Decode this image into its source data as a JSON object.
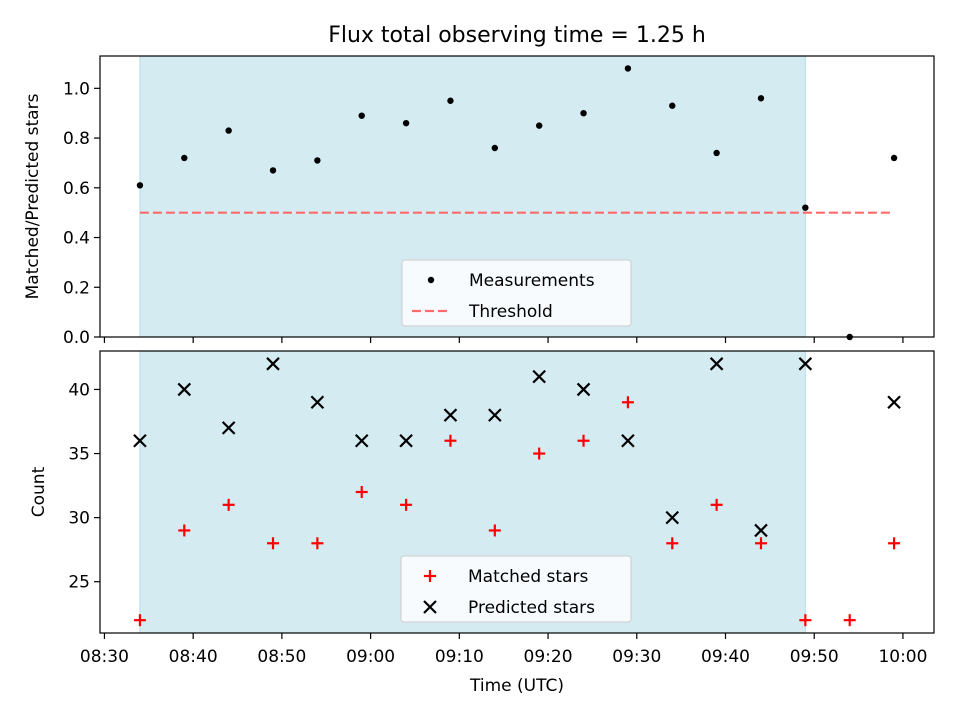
{
  "chart_data": [
    {
      "type": "scatter",
      "title": "Flux total observing time = 1.25 h",
      "xlabel": "",
      "ylabel": "Matched/Predicted stars",
      "ylim": [
        0,
        1.13
      ],
      "yticks": [
        "0.0",
        "0.2",
        "0.4",
        "0.6",
        "0.8",
        "1.0"
      ],
      "x_range_minutes": [
        509.5,
        603.5
      ],
      "shaded_interval": [
        "08:34",
        "09:49"
      ],
      "shade_color": "#add8e6",
      "series": [
        {
          "name": "Measurements",
          "color": "#000000",
          "marker": "dot",
          "x": [
            "08:34",
            "08:39",
            "08:44",
            "08:49",
            "08:54",
            "08:59",
            "09:04",
            "09:09",
            "09:14",
            "09:19",
            "09:24",
            "09:29",
            "09:34",
            "09:39",
            "09:44",
            "09:49",
            "09:54",
            "09:59"
          ],
          "values": [
            0.61,
            0.72,
            0.83,
            0.67,
            0.71,
            0.89,
            0.86,
            0.95,
            0.76,
            0.85,
            0.9,
            1.08,
            0.93,
            0.74,
            0.96,
            0.52,
            0.0,
            0.72
          ]
        },
        {
          "name": "Threshold",
          "color": "#ff6b6b",
          "style": "dashed",
          "x": [
            "08:34",
            "09:59"
          ],
          "values": [
            0.5,
            0.5
          ]
        }
      ],
      "legend_position": "lower-center",
      "grid": false
    },
    {
      "type": "scatter",
      "xlabel": "Time (UTC)",
      "ylabel": "Count",
      "ylim": [
        21,
        43
      ],
      "yticks": [
        "25",
        "30",
        "35",
        "40"
      ],
      "xticks": [
        "08:30",
        "08:40",
        "08:50",
        "09:00",
        "09:10",
        "09:20",
        "09:30",
        "09:40",
        "09:50",
        "10:00"
      ],
      "shaded_interval": [
        "08:34",
        "09:49"
      ],
      "series": [
        {
          "name": "Matched stars",
          "color": "#ff0000",
          "marker": "plus",
          "x": [
            "08:34",
            "08:39",
            "08:44",
            "08:49",
            "08:54",
            "08:59",
            "09:04",
            "09:09",
            "09:14",
            "09:19",
            "09:24",
            "09:29",
            "09:34",
            "09:39",
            "09:44",
            "09:49",
            "09:54",
            "09:59"
          ],
          "values": [
            22,
            29,
            31,
            28,
            28,
            32,
            31,
            36,
            29,
            35,
            36,
            39,
            28,
            31,
            28,
            22,
            22,
            28
          ]
        },
        {
          "name": "Predicted stars",
          "color": "#000000",
          "marker": "x",
          "x": [
            "08:34",
            "08:39",
            "08:44",
            "08:49",
            "08:54",
            "08:59",
            "09:04",
            "09:09",
            "09:14",
            "09:19",
            "09:24",
            "09:29",
            "09:34",
            "09:39",
            "09:44",
            "09:49",
            "09:59"
          ],
          "values": [
            36,
            40,
            37,
            42,
            39,
            36,
            36,
            38,
            38,
            41,
            40,
            36,
            30,
            42,
            29,
            42,
            39
          ]
        }
      ],
      "legend_position": "lower-center",
      "grid": false
    }
  ]
}
